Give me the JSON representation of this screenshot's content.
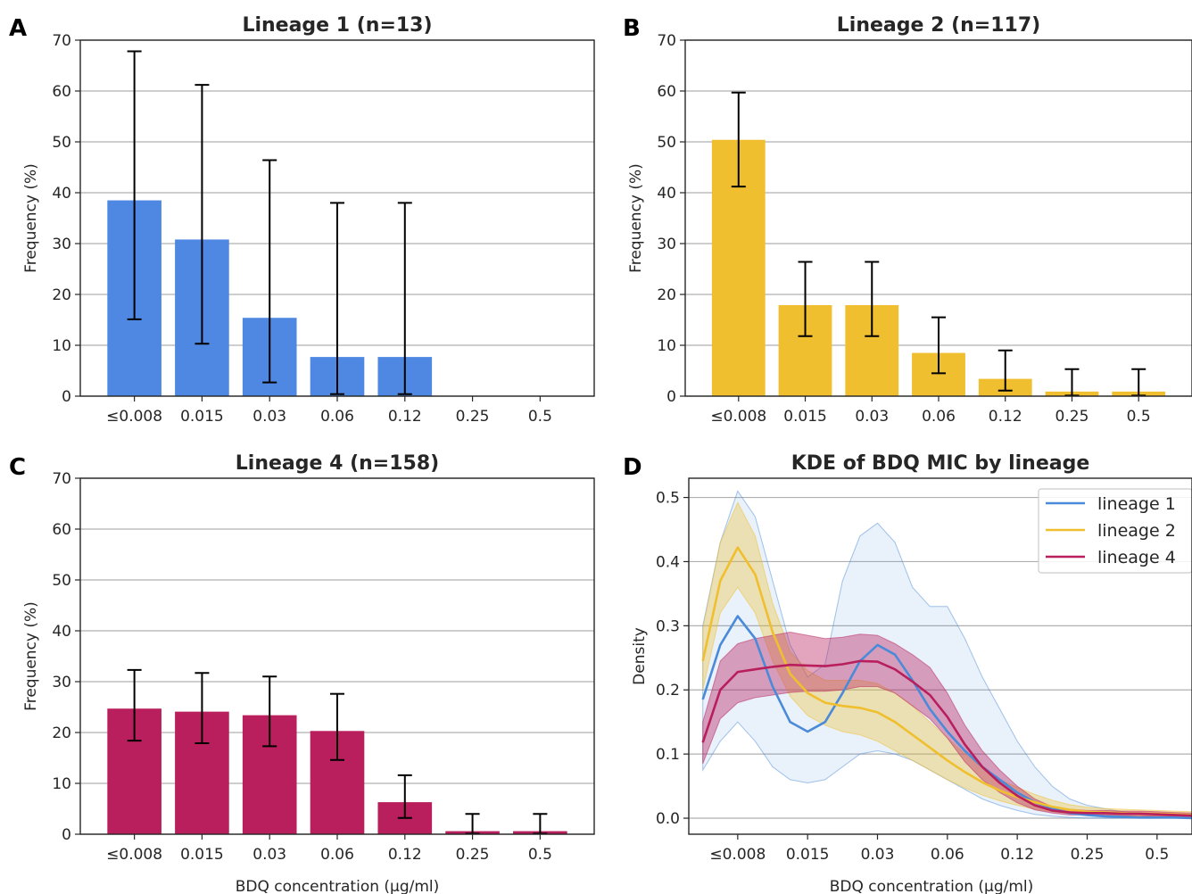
{
  "chart_data": [
    {
      "panel_label": "A",
      "type": "bar",
      "title": "Lineage 1 (n=13)",
      "xlabel": "",
      "ylabel": "Frequency (%)",
      "categories": [
        "≤0.008",
        "0.015",
        "0.03",
        "0.06",
        "0.12",
        "0.25",
        "0.5"
      ],
      "values": [
        38.5,
        30.8,
        15.4,
        7.7,
        7.7,
        0,
        0
      ],
      "error_low": [
        15.1,
        10.3,
        2.7,
        0.4,
        0.4,
        null,
        null
      ],
      "error_high": [
        67.8,
        61.2,
        46.4,
        38.0,
        38.0,
        null,
        null
      ],
      "ylim": [
        0,
        70
      ],
      "yticks": [
        0,
        10,
        20,
        30,
        40,
        50,
        60,
        70
      ],
      "grid": "y",
      "color": "#4f88e2"
    },
    {
      "panel_label": "B",
      "type": "bar",
      "title": "Lineage 2 (n=117)",
      "xlabel": "",
      "ylabel": "Frequency (%)",
      "categories": [
        "≤0.008",
        "0.015",
        "0.03",
        "0.06",
        "0.12",
        "0.25",
        "0.5"
      ],
      "values": [
        50.4,
        17.9,
        17.9,
        8.5,
        3.4,
        0.9,
        0.9
      ],
      "error_low": [
        41.2,
        11.8,
        11.8,
        4.5,
        1.1,
        0.1,
        0.1
      ],
      "error_high": [
        59.7,
        26.4,
        26.4,
        15.5,
        9.0,
        5.3,
        5.3
      ],
      "ylim": [
        0,
        70
      ],
      "yticks": [
        0,
        10,
        20,
        30,
        40,
        50,
        60,
        70
      ],
      "grid": "y",
      "color": "#f0bf2f"
    },
    {
      "panel_label": "C",
      "type": "bar",
      "title": "Lineage 4 (n=158)",
      "xlabel": "BDQ concentration (μg/ml)",
      "ylabel": "Frequency (%)",
      "categories": [
        "≤0.008",
        "0.015",
        "0.03",
        "0.06",
        "0.12",
        "0.25",
        "0.5"
      ],
      "values": [
        24.7,
        24.1,
        23.4,
        20.3,
        6.3,
        0.6,
        0.6
      ],
      "error_low": [
        18.4,
        17.9,
        17.3,
        14.6,
        3.2,
        0.1,
        0.1
      ],
      "error_high": [
        32.3,
        31.7,
        31.0,
        27.6,
        11.6,
        4.0,
        4.0
      ],
      "ylim": [
        0,
        70
      ],
      "yticks": [
        0,
        10,
        20,
        30,
        40,
        50,
        60,
        70
      ],
      "grid": "y",
      "color": "#b81f5c"
    },
    {
      "panel_label": "D",
      "type": "line",
      "title": "KDE of BDQ MIC by lineage",
      "xlabel": "BDQ concentration (μg/ml)",
      "ylabel": "Density",
      "x_tick_labels": [
        "≤0.008",
        "0.015",
        "0.03",
        "0.06",
        "0.12",
        "0.25",
        "0.5"
      ],
      "x_range": [
        -0.5,
        6.5
      ],
      "ylim": [
        -0.025,
        0.53
      ],
      "yticks": [
        "0.0",
        "0.1",
        "0.2",
        "0.3",
        "0.4",
        "0.5"
      ],
      "grid": "y",
      "legend_position": "top-right",
      "x": [
        -0.5,
        -0.25,
        0,
        0.25,
        0.5,
        0.75,
        1,
        1.25,
        1.5,
        1.75,
        2,
        2.25,
        2.5,
        2.75,
        3,
        3.25,
        3.5,
        3.75,
        4,
        4.25,
        4.5,
        4.75,
        5,
        5.25,
        5.5,
        5.75,
        6,
        6.25,
        6.5
      ],
      "series": [
        {
          "name": "lineage 1",
          "color": "#4a8ad8",
          "values": [
            0.185,
            0.27,
            0.315,
            0.28,
            0.205,
            0.15,
            0.135,
            0.15,
            0.195,
            0.245,
            0.27,
            0.255,
            0.215,
            0.17,
            0.135,
            0.105,
            0.08,
            0.06,
            0.04,
            0.025,
            0.015,
            0.008,
            0.005,
            0.003,
            0.002,
            0.001,
            0.001,
            0.001,
            0.0
          ],
          "ci_low": [
            0.075,
            0.12,
            0.15,
            0.12,
            0.08,
            0.06,
            0.055,
            0.06,
            0.08,
            0.1,
            0.105,
            0.1,
            0.09,
            0.075,
            0.06,
            0.045,
            0.03,
            0.02,
            0.012,
            0.006,
            0.003,
            0.001,
            0.0,
            0.0,
            0.0,
            0.0,
            0.0,
            0.0,
            0.0
          ],
          "ci_high": [
            0.3,
            0.43,
            0.51,
            0.47,
            0.37,
            0.27,
            0.22,
            0.24,
            0.37,
            0.44,
            0.46,
            0.43,
            0.36,
            0.33,
            0.33,
            0.28,
            0.22,
            0.17,
            0.12,
            0.08,
            0.05,
            0.03,
            0.02,
            0.015,
            0.01,
            0.008,
            0.006,
            0.005,
            0.004
          ]
        },
        {
          "name": "lineage 2",
          "color": "#f0bf2f",
          "values": [
            0.245,
            0.37,
            0.422,
            0.38,
            0.29,
            0.225,
            0.195,
            0.18,
            0.175,
            0.172,
            0.165,
            0.15,
            0.13,
            0.11,
            0.09,
            0.072,
            0.056,
            0.043,
            0.033,
            0.025,
            0.018,
            0.013,
            0.01,
            0.009,
            0.008,
            0.007,
            0.007,
            0.006,
            0.005
          ],
          "ci_low": [
            0.2,
            0.32,
            0.36,
            0.32,
            0.245,
            0.19,
            0.16,
            0.145,
            0.135,
            0.13,
            0.12,
            0.105,
            0.09,
            0.075,
            0.06,
            0.047,
            0.036,
            0.027,
            0.02,
            0.014,
            0.01,
            0.007,
            0.005,
            0.004,
            0.004,
            0.003,
            0.003,
            0.003,
            0.002
          ],
          "ci_high": [
            0.295,
            0.43,
            0.492,
            0.44,
            0.335,
            0.26,
            0.23,
            0.215,
            0.215,
            0.215,
            0.21,
            0.195,
            0.175,
            0.15,
            0.125,
            0.1,
            0.078,
            0.06,
            0.048,
            0.037,
            0.028,
            0.021,
            0.017,
            0.015,
            0.014,
            0.013,
            0.012,
            0.011,
            0.01
          ]
        },
        {
          "name": "lineage 4",
          "color": "#b81f5c",
          "values": [
            0.118,
            0.2,
            0.228,
            0.232,
            0.236,
            0.239,
            0.238,
            0.237,
            0.24,
            0.245,
            0.244,
            0.232,
            0.213,
            0.192,
            0.158,
            0.115,
            0.08,
            0.055,
            0.035,
            0.02,
            0.012,
            0.009,
            0.008,
            0.008,
            0.007,
            0.007,
            0.006,
            0.005,
            0.004
          ],
          "ci_low": [
            0.085,
            0.155,
            0.18,
            0.188,
            0.192,
            0.196,
            0.198,
            0.198,
            0.2,
            0.205,
            0.205,
            0.195,
            0.175,
            0.155,
            0.125,
            0.088,
            0.06,
            0.04,
            0.024,
            0.013,
            0.008,
            0.005,
            0.005,
            0.005,
            0.004,
            0.004,
            0.003,
            0.003,
            0.002
          ],
          "ci_high": [
            0.15,
            0.245,
            0.272,
            0.28,
            0.285,
            0.29,
            0.285,
            0.28,
            0.282,
            0.287,
            0.285,
            0.272,
            0.255,
            0.235,
            0.195,
            0.145,
            0.105,
            0.075,
            0.05,
            0.03,
            0.018,
            0.014,
            0.012,
            0.012,
            0.011,
            0.011,
            0.01,
            0.009,
            0.008
          ]
        }
      ]
    }
  ]
}
